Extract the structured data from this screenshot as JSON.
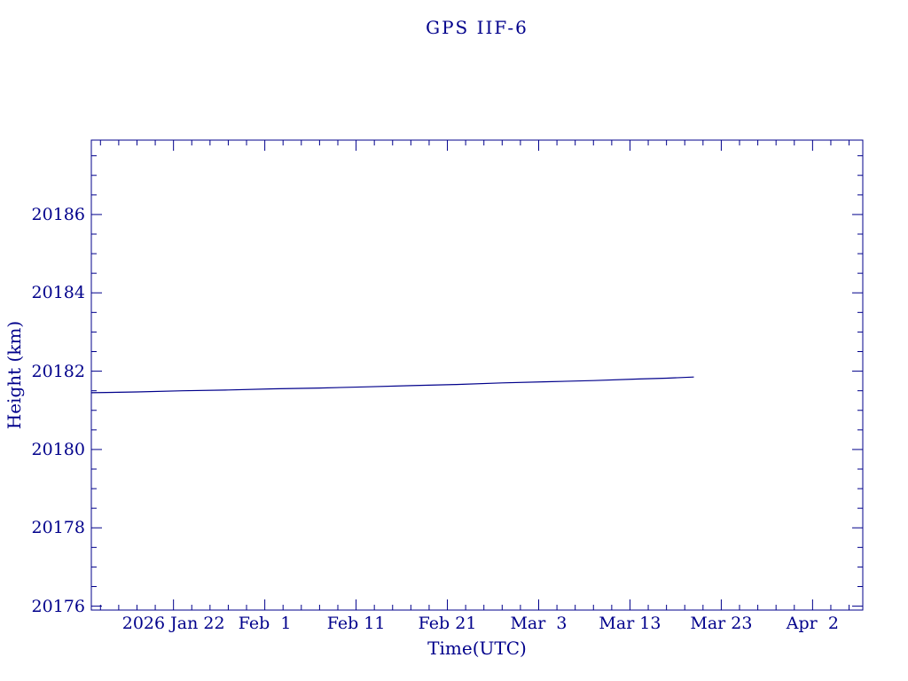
{
  "chart_data": {
    "type": "line",
    "title": "GPS IIF-6",
    "xlabel": "Time(UTC)",
    "ylabel": "Height (km)",
    "axis_color": "#00008b",
    "background_color": "#ffffff",
    "grid": false,
    "x_axis": {
      "unit": "days",
      "range": [
        0,
        84.5
      ],
      "major_ticks": [
        9,
        19,
        29,
        39,
        49,
        59,
        69,
        79
      ],
      "major_tick_labels": [
        "2026 Jan 22",
        "Feb  1",
        "Feb 11",
        "Feb 21",
        "Mar  3",
        "Mar 13",
        "Mar 23",
        "Apr  2"
      ],
      "minor_tick_step": 2
    },
    "y_axis": {
      "range": [
        20175.9,
        20187.9
      ],
      "major_ticks": [
        20176,
        20178,
        20180,
        20182,
        20184,
        20186
      ],
      "major_tick_labels": [
        "20176",
        "20178",
        "20180",
        "20182",
        "20184",
        "20186"
      ],
      "minor_tick_step": 0.5
    },
    "series": [
      {
        "name": "height-km",
        "color": "#00008b",
        "x": [
          0,
          5,
          10,
          15,
          20,
          25,
          30,
          35,
          40,
          45,
          50,
          55,
          60,
          63,
          66
        ],
        "y": [
          20181.45,
          20181.47,
          20181.5,
          20181.52,
          20181.55,
          20181.57,
          20181.6,
          20181.63,
          20181.66,
          20181.7,
          20181.73,
          20181.76,
          20181.8,
          20181.82,
          20181.85
        ]
      }
    ]
  }
}
